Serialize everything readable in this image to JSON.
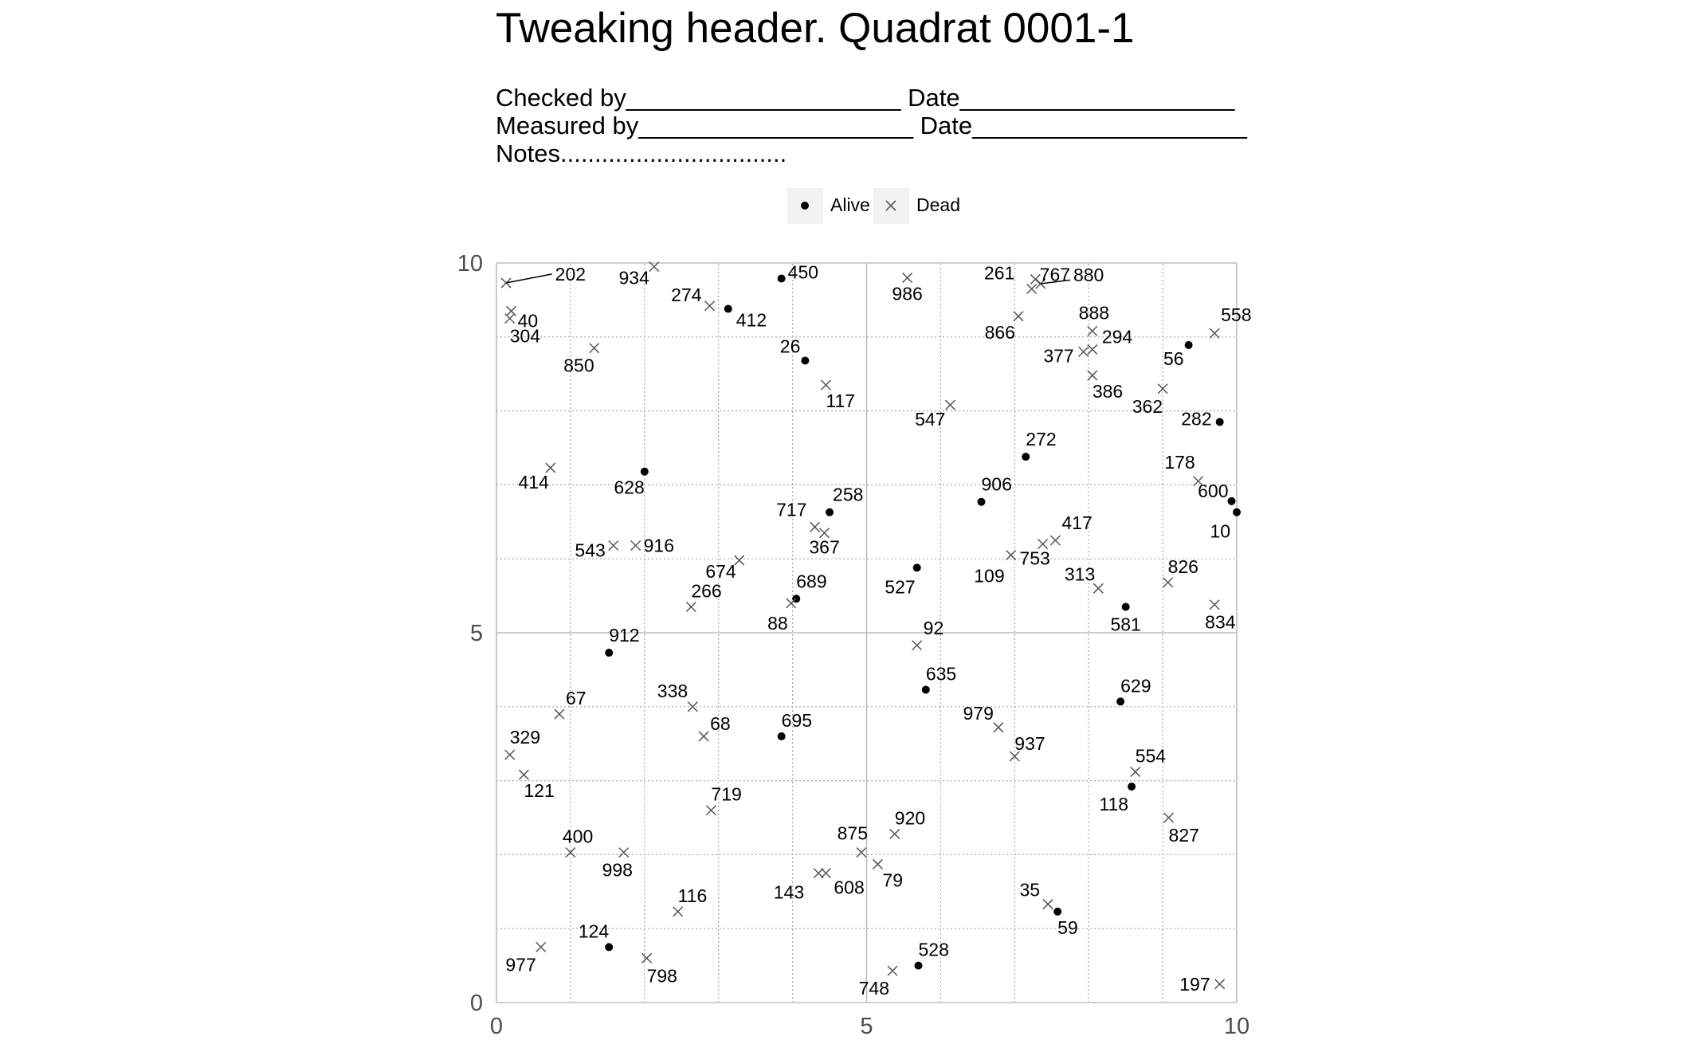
{
  "header": {
    "title": "Tweaking header. Quadrat 0001-1",
    "checked_line": "Checked by____________________ Date____________________",
    "measured_line": "Measured by____________________ Date____________________",
    "notes_line": "Notes................................."
  },
  "legend": {
    "alive": "Alive",
    "dead": "Dead"
  },
  "chart_data": {
    "type": "scatter",
    "title": "Tweaking header. Quadrat 0001-1",
    "xlim": [
      0,
      10
    ],
    "ylim": [
      0,
      10
    ],
    "x_ticks": [
      "0",
      "5",
      "10"
    ],
    "y_ticks": [
      "0",
      "5",
      "10"
    ],
    "grid": true,
    "legend_position": "top",
    "colors": {
      "alive": "#000000",
      "dead": "#555555",
      "grid": "#bdbdbd"
    },
    "series": [
      {
        "name": "Alive",
        "marker": "dot",
        "points": [
          {
            "tag": "450",
            "x": 3.85,
            "y": 9.79
          },
          {
            "tag": "412",
            "x": 3.13,
            "y": 9.38
          },
          {
            "tag": "26",
            "x": 4.17,
            "y": 8.68
          },
          {
            "tag": "56",
            "x": 9.35,
            "y": 8.89
          },
          {
            "tag": "282",
            "x": 9.77,
            "y": 7.85
          },
          {
            "tag": "272",
            "x": 7.15,
            "y": 7.38
          },
          {
            "tag": "628",
            "x": 2.0,
            "y": 7.18
          },
          {
            "tag": "258",
            "x": 4.5,
            "y": 6.63
          },
          {
            "tag": "906",
            "x": 6.55,
            "y": 6.77
          },
          {
            "tag": "600",
            "x": 9.93,
            "y": 6.78
          },
          {
            "tag": "10",
            "x": 10.0,
            "y": 6.63
          },
          {
            "tag": "527",
            "x": 5.68,
            "y": 5.88
          },
          {
            "tag": "689",
            "x": 4.05,
            "y": 5.46
          },
          {
            "tag": "581",
            "x": 8.5,
            "y": 5.35
          },
          {
            "tag": "912",
            "x": 1.52,
            "y": 4.73
          },
          {
            "tag": "635",
            "x": 5.8,
            "y": 4.23
          },
          {
            "tag": "629",
            "x": 8.43,
            "y": 4.07
          },
          {
            "tag": "695",
            "x": 3.85,
            "y": 3.6
          },
          {
            "tag": "118",
            "x": 8.58,
            "y": 2.92
          },
          {
            "tag": "59",
            "x": 7.58,
            "y": 1.23
          },
          {
            "tag": "124",
            "x": 1.52,
            "y": 0.75
          },
          {
            "tag": "528",
            "x": 5.7,
            "y": 0.5
          }
        ]
      },
      {
        "name": "Dead",
        "marker": "cross",
        "points": [
          {
            "tag": "202",
            "x": 0.13,
            "y": 9.73
          },
          {
            "tag": "40",
            "x": 0.2,
            "y": 9.35
          },
          {
            "tag": "304",
            "x": 0.18,
            "y": 9.25
          },
          {
            "tag": "934",
            "x": 2.13,
            "y": 9.95
          },
          {
            "tag": "274",
            "x": 2.88,
            "y": 9.42
          },
          {
            "tag": "850",
            "x": 1.32,
            "y": 8.85
          },
          {
            "tag": "117",
            "x": 4.45,
            "y": 8.35
          },
          {
            "tag": "986",
            "x": 5.55,
            "y": 9.8
          },
          {
            "tag": "261",
            "x": 7.28,
            "y": 9.78
          },
          {
            "tag": "880",
            "x": 7.35,
            "y": 9.72
          },
          {
            "tag": "767",
            "x": 7.23,
            "y": 9.65
          },
          {
            "tag": "866",
            "x": 7.05,
            "y": 9.28
          },
          {
            "tag": "888",
            "x": 8.05,
            "y": 9.08
          },
          {
            "tag": "377",
            "x": 7.93,
            "y": 8.8
          },
          {
            "tag": "294",
            "x": 8.05,
            "y": 8.83
          },
          {
            "tag": "386",
            "x": 8.05,
            "y": 8.48
          },
          {
            "tag": "558",
            "x": 9.7,
            "y": 9.05
          },
          {
            "tag": "362",
            "x": 9.0,
            "y": 8.3
          },
          {
            "tag": "547",
            "x": 6.13,
            "y": 8.08
          },
          {
            "tag": "414",
            "x": 0.73,
            "y": 7.23
          },
          {
            "tag": "178",
            "x": 9.48,
            "y": 7.05
          },
          {
            "tag": "717",
            "x": 4.3,
            "y": 6.43
          },
          {
            "tag": "367",
            "x": 4.43,
            "y": 6.35
          },
          {
            "tag": "417",
            "x": 7.55,
            "y": 6.25
          },
          {
            "tag": "753",
            "x": 7.38,
            "y": 6.2
          },
          {
            "tag": "543",
            "x": 1.58,
            "y": 6.18
          },
          {
            "tag": "916",
            "x": 1.88,
            "y": 6.18
          },
          {
            "tag": "109",
            "x": 6.95,
            "y": 6.05
          },
          {
            "tag": "674",
            "x": 3.28,
            "y": 5.98
          },
          {
            "tag": "313",
            "x": 8.13,
            "y": 5.6
          },
          {
            "tag": "826",
            "x": 9.07,
            "y": 5.68
          },
          {
            "tag": "266",
            "x": 2.63,
            "y": 5.35
          },
          {
            "tag": "88",
            "x": 3.98,
            "y": 5.4
          },
          {
            "tag": "834",
            "x": 9.7,
            "y": 5.38
          },
          {
            "tag": "92",
            "x": 5.68,
            "y": 4.83
          },
          {
            "tag": "67",
            "x": 0.85,
            "y": 3.9
          },
          {
            "tag": "338",
            "x": 2.65,
            "y": 4.0
          },
          {
            "tag": "68",
            "x": 2.8,
            "y": 3.6
          },
          {
            "tag": "979",
            "x": 6.78,
            "y": 3.72
          },
          {
            "tag": "937",
            "x": 7.0,
            "y": 3.33
          },
          {
            "tag": "329",
            "x": 0.18,
            "y": 3.35
          },
          {
            "tag": "121",
            "x": 0.37,
            "y": 3.08
          },
          {
            "tag": "554",
            "x": 8.63,
            "y": 3.12
          },
          {
            "tag": "719",
            "x": 2.9,
            "y": 2.6
          },
          {
            "tag": "827",
            "x": 9.08,
            "y": 2.5
          },
          {
            "tag": "920",
            "x": 5.38,
            "y": 2.28
          },
          {
            "tag": "400",
            "x": 1.0,
            "y": 2.03
          },
          {
            "tag": "998",
            "x": 1.72,
            "y": 2.03
          },
          {
            "tag": "875",
            "x": 4.93,
            "y": 2.03
          },
          {
            "tag": "79",
            "x": 5.15,
            "y": 1.87
          },
          {
            "tag": "143",
            "x": 4.35,
            "y": 1.75
          },
          {
            "tag": "608",
            "x": 4.45,
            "y": 1.75
          },
          {
            "tag": "35",
            "x": 7.45,
            "y": 1.33
          },
          {
            "tag": "116",
            "x": 2.45,
            "y": 1.23
          },
          {
            "tag": "977",
            "x": 0.6,
            "y": 0.75
          },
          {
            "tag": "798",
            "x": 2.03,
            "y": 0.6
          },
          {
            "tag": "748",
            "x": 5.35,
            "y": 0.43
          },
          {
            "tag": "197",
            "x": 9.77,
            "y": 0.25
          }
        ]
      }
    ]
  }
}
